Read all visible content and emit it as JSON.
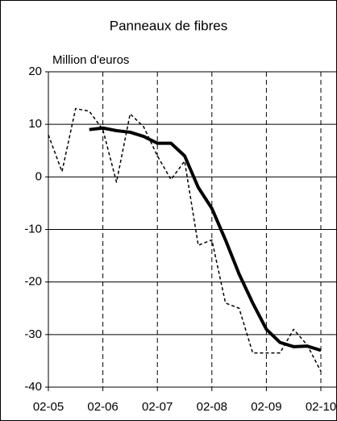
{
  "chart_data": {
    "type": "line",
    "title": "Panneaux de fibres",
    "y_label": "Million d'euros",
    "categories": [
      "02-05",
      null,
      null,
      null,
      "02-06",
      null,
      null,
      null,
      "02-07",
      null,
      null,
      null,
      "02-08",
      null,
      null,
      null,
      "02-09",
      null,
      null,
      null,
      "02-10"
    ],
    "series": [
      {
        "color": "#000000",
        "dash": "4,3",
        "width": 1.5,
        "values": [
          8,
          1,
          13,
          12.5,
          9,
          -1,
          12,
          9.5,
          4,
          -0.5,
          3,
          -13,
          -12,
          -24,
          -25,
          -33.5,
          -33.5,
          -33.5,
          -29,
          -32,
          -37
        ]
      },
      {
        "color": "#000000",
        "width": 4,
        "values": [
          null,
          null,
          null,
          9,
          9.3,
          8.8,
          8.5,
          7.7,
          6.4,
          6.4,
          4,
          -2,
          -6,
          -12,
          -18.5,
          -24,
          -29,
          -31.5,
          -32.3,
          -32.2,
          -33
        ]
      }
    ],
    "ylim": [
      -40,
      20
    ],
    "yticks": [
      -40,
      -30,
      -20,
      -10,
      0,
      10,
      20
    ],
    "grid": true
  }
}
